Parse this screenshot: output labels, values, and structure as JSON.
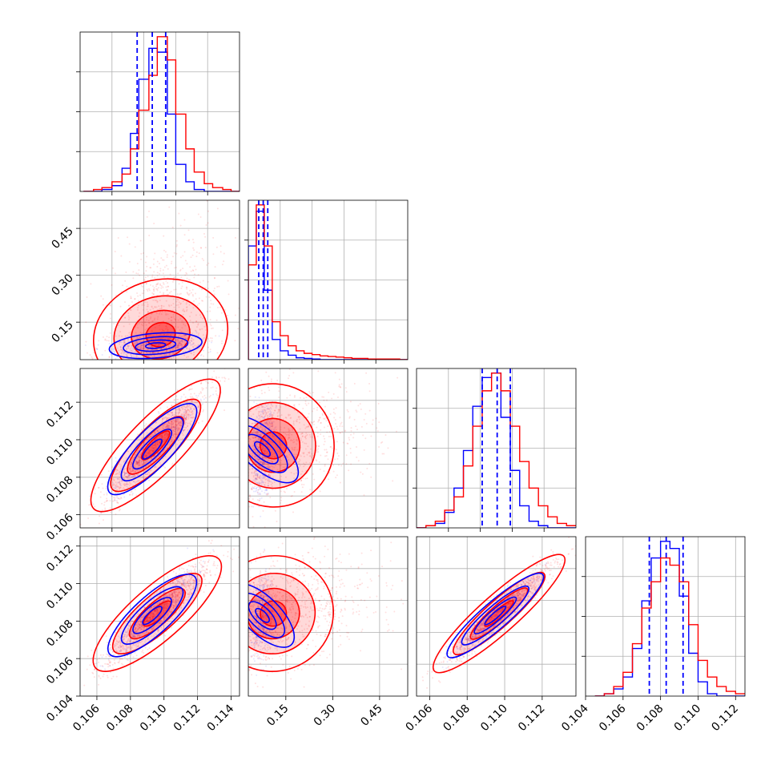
{
  "chart_data": {
    "type": "corner",
    "series_colors": {
      "blue": "#0000ff",
      "red": "#ff0000"
    },
    "grid": true,
    "panels": [
      {
        "id": "hist-1",
        "row": 0,
        "col": 0,
        "type": "histogram",
        "xlim": [
          0.105,
          0.1145
        ],
        "bin_edges": [
          0.1052,
          0.1058,
          0.1063,
          0.1069,
          0.1075,
          0.108,
          0.1085,
          0.1091,
          0.1096,
          0.1102,
          0.1107,
          0.1113,
          0.1118,
          0.1124,
          0.1129,
          0.1135,
          0.114,
          0.1145
        ],
        "series": [
          {
            "color": "blue",
            "values": [
              0,
              0,
              1,
              3,
              12,
              30,
              58,
              74,
              72,
              40,
              14,
              5,
              1,
              0,
              0,
              0,
              0
            ]
          },
          {
            "color": "red",
            "values": [
              0,
              1,
              2,
              5,
              9,
              22,
              42,
              60,
              80,
              68,
              40,
              22,
              10,
              4,
              2,
              1,
              0
            ]
          }
        ],
        "quantile_lines": [
          0.1084,
          0.1093,
          0.1101
        ]
      },
      {
        "id": "scatter-2-1",
        "row": 1,
        "col": 0,
        "type": "scatter-contour",
        "xlim": [
          0.105,
          0.1145
        ],
        "ylim": [
          0.03,
          0.54
        ],
        "yticks": [
          0.15,
          0.3,
          0.45
        ],
        "ytick_labels": [
          "0.15",
          "0.30",
          "0.45"
        ]
      },
      {
        "id": "hist-2",
        "row": 1,
        "col": 1,
        "type": "histogram",
        "xlim": [
          0.03,
          0.54
        ],
        "bin_edges": [
          0.03,
          0.0555,
          0.081,
          0.1065,
          0.132,
          0.1575,
          0.183,
          0.2085,
          0.234,
          0.2595,
          0.285,
          0.3105,
          0.336,
          0.3615,
          0.387,
          0.4125,
          0.438,
          0.4635,
          0.489,
          0.5145,
          0.54
        ],
        "series": [
          {
            "color": "blue",
            "values": [
              180,
              235,
              110,
              32,
              14,
              7,
              3,
              2,
              1,
              0,
              0,
              0,
              0,
              0,
              0,
              0,
              0,
              0,
              0,
              0
            ]
          },
          {
            "color": "red",
            "values": [
              150,
              245,
              180,
              60,
              38,
              22,
              14,
              10,
              8,
              6,
              5,
              4,
              3,
              2,
              2,
              1,
              1,
              1,
              1,
              0
            ]
          }
        ],
        "quantile_lines": [
          0.0634,
          0.0777,
          0.0922
        ]
      },
      {
        "id": "scatter-3-1",
        "row": 2,
        "col": 0,
        "type": "scatter-contour",
        "xlim": [
          0.105,
          0.1145
        ],
        "ylim": [
          0.1053,
          0.1138
        ],
        "yticks": [
          0.106,
          0.108,
          0.11,
          0.112
        ],
        "ytick_labels": [
          "0.106",
          "0.108",
          "0.110",
          "0.112"
        ]
      },
      {
        "id": "scatter-3-2",
        "row": 2,
        "col": 1,
        "type": "scatter-contour",
        "xlim": [
          0.03,
          0.54
        ],
        "ylim": [
          0.1053,
          0.1138
        ]
      },
      {
        "id": "hist-3",
        "row": 2,
        "col": 2,
        "type": "histogram",
        "xlim": [
          0.1053,
          0.1138
        ],
        "bin_edges": [
          0.1053,
          0.1058,
          0.1063,
          0.1068,
          0.1073,
          0.1078,
          0.1083,
          0.1088,
          0.1093,
          0.1098,
          0.1103,
          0.1108,
          0.1113,
          0.1118,
          0.1123,
          0.1128,
          0.1133,
          0.1138
        ],
        "series": [
          {
            "color": "blue",
            "values": [
              0,
              1,
              2,
              7,
              18,
              35,
              55,
              68,
              70,
              50,
              26,
              10,
              3,
              1,
              0,
              0,
              0
            ]
          },
          {
            "color": "red",
            "values": [
              0,
              1,
              3,
              8,
              14,
              28,
              46,
              62,
              70,
              62,
              46,
              30,
              18,
              10,
              5,
              2,
              1
            ]
          }
        ],
        "quantile_lines": [
          0.1088,
          0.1096,
          0.1103
        ]
      },
      {
        "id": "scatter-4-1",
        "row": 3,
        "col": 0,
        "type": "scatter-contour",
        "xlim": [
          0.105,
          0.1145
        ],
        "ylim": [
          0.104,
          0.1125
        ],
        "xticks": [
          0.106,
          0.108,
          0.11,
          0.112,
          0.114
        ],
        "xtick_labels": [
          "0.106",
          "0.108",
          "0.110",
          "0.112",
          "0.114"
        ],
        "yticks": [
          0.104,
          0.106,
          0.108,
          0.11,
          0.112
        ],
        "ytick_labels": [
          "0.104",
          "0.106",
          "0.108",
          "0.110",
          "0.112"
        ]
      },
      {
        "id": "scatter-4-2",
        "row": 3,
        "col": 1,
        "type": "scatter-contour",
        "xlim": [
          0.03,
          0.54
        ],
        "ylim": [
          0.104,
          0.1125
        ],
        "xticks": [
          0.15,
          0.3,
          0.45
        ],
        "xtick_labels": [
          "0.15",
          "0.30",
          "0.45"
        ]
      },
      {
        "id": "scatter-4-3",
        "row": 3,
        "col": 2,
        "type": "scatter-contour",
        "xlim": [
          0.1053,
          0.1138
        ],
        "ylim": [
          0.104,
          0.1125
        ],
        "xticks": [
          0.106,
          0.108,
          0.11,
          0.112
        ],
        "xtick_labels": [
          "0.106",
          "0.108",
          "0.110",
          "0.112"
        ]
      },
      {
        "id": "hist-4",
        "row": 3,
        "col": 3,
        "type": "histogram",
        "xlim": [
          0.104,
          0.1125
        ],
        "xticks": [
          0.104,
          0.106,
          0.108,
          0.11,
          0.112
        ],
        "xtick_labels": [
          "0.104",
          "0.106",
          "0.108",
          "0.110",
          "0.112"
        ],
        "bin_edges": [
          0.1045,
          0.105,
          0.1055,
          0.106,
          0.1065,
          0.107,
          0.1075,
          0.108,
          0.1085,
          0.109,
          0.1095,
          0.11,
          0.1105,
          0.111,
          0.1115,
          0.112,
          0.1125
        ],
        "series": [
          {
            "color": "blue",
            "values": [
              0,
              1,
              3,
              8,
              20,
              40,
              58,
              65,
              62,
              42,
              18,
              6,
              1,
              0,
              0,
              0
            ]
          },
          {
            "color": "red",
            "values": [
              0,
              1,
              4,
              10,
              22,
              37,
              48,
              58,
              55,
              48,
              30,
              15,
              8,
              4,
              2,
              1
            ]
          }
        ],
        "quantile_lines": [
          0.1074,
          0.1083,
          0.1092
        ]
      }
    ]
  }
}
